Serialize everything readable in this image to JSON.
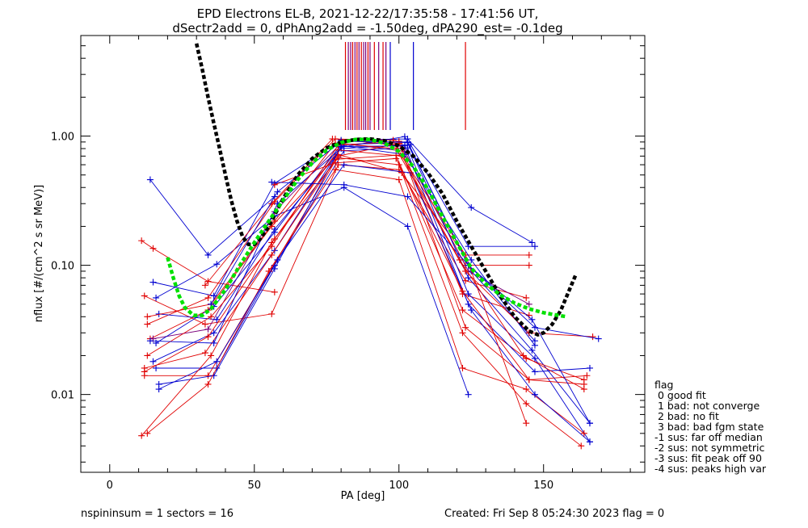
{
  "title_line1": "EPD Electrons EL-B, 2021-12-22/17:35:58 - 17:41:56 UT,",
  "title_line2": "dSectr2add = 0, dPhAng2add = -1.50deg, dPA290_est=  -0.1deg",
  "footer": {
    "left": "nspininsum =  1  sectors = 16",
    "right": "Created: Fri Sep  8 05:24:30 2023   flag = 0"
  },
  "legend": {
    "title": "flag",
    "items": [
      " 0 good fit",
      " 1 bad: not converge",
      " 2 bad: no fit",
      " 3 bad: bad fgm state",
      "-1 sus: far off median",
      "-2 sus: not symmetric",
      "-3 sus: fit peak off 90",
      "-4 sus: peaks high var"
    ]
  },
  "colors": {
    "red": "#e00000",
    "blue": "#0000d0",
    "purple": "#7b007b",
    "green": "#00e000",
    "black": "#000000"
  },
  "chart_data": {
    "type": "line",
    "xlabel": "PA [deg]",
    "ylabel": "nflux [#/(cm^2 s sr MeV)]",
    "xlim": [
      -10,
      185
    ],
    "ylim": [
      0.0025,
      6
    ],
    "yscale": "log",
    "xticks": [
      0,
      50,
      100,
      150
    ],
    "xtick_labels": [
      "0",
      "50",
      "100",
      "150"
    ],
    "yticks": [
      0.01,
      0.1,
      1.0
    ],
    "ytick_labels": [
      "0.01",
      "0.10",
      "1.00"
    ],
    "peak_markers_pa": [
      {
        "pa": 81.5,
        "c": "red"
      },
      {
        "pa": 82.5,
        "c": "purple"
      },
      {
        "pa": 83.3,
        "c": "purple"
      },
      {
        "pa": 84.0,
        "c": "red"
      },
      {
        "pa": 84.8,
        "c": "purple"
      },
      {
        "pa": 85.5,
        "c": "red"
      },
      {
        "pa": 86.2,
        "c": "purple"
      },
      {
        "pa": 87.0,
        "c": "red"
      },
      {
        "pa": 87.8,
        "c": "purple"
      },
      {
        "pa": 88.5,
        "c": "purple"
      },
      {
        "pa": 89.3,
        "c": "red"
      },
      {
        "pa": 90.0,
        "c": "purple"
      },
      {
        "pa": 91.5,
        "c": "red"
      },
      {
        "pa": 93.0,
        "c": "purple"
      },
      {
        "pa": 94.5,
        "c": "red"
      },
      {
        "pa": 95.5,
        "c": "purple"
      },
      {
        "pa": 97.0,
        "c": "blue"
      },
      {
        "pa": 105.0,
        "c": "blue"
      },
      {
        "pa": 123.0,
        "c": "red"
      }
    ],
    "series": [
      {
        "c": "blue",
        "points": [
          [
            14,
            0.46
          ],
          [
            34,
            0.12
          ],
          [
            57,
            0.34
          ]
        ]
      },
      {
        "c": "red",
        "points": [
          [
            11,
            0.155
          ],
          [
            15,
            0.135
          ],
          [
            34,
            0.075
          ],
          [
            57,
            0.062
          ]
        ]
      },
      {
        "c": "red",
        "points": [
          [
            12,
            0.058
          ],
          [
            33,
            0.035
          ],
          [
            56,
            0.042
          ],
          [
            79,
            0.6
          ],
          [
            100,
            0.55
          ],
          [
            123,
            0.12
          ],
          [
            145,
            0.12
          ]
        ]
      },
      {
        "c": "blue",
        "points": [
          [
            15,
            0.074
          ],
          [
            36,
            0.058
          ],
          [
            57,
            0.43
          ],
          [
            80,
            0.93
          ],
          [
            103,
            0.95
          ],
          [
            125,
            0.28
          ],
          [
            146,
            0.15
          ]
        ]
      },
      {
        "c": "blue",
        "points": [
          [
            16,
            0.056
          ],
          [
            37,
            0.102
          ],
          [
            57,
            0.24
          ],
          [
            81,
            0.4
          ],
          [
            103,
            0.2
          ],
          [
            124,
            0.01
          ]
        ]
      },
      {
        "c": "red",
        "points": [
          [
            13,
            0.035
          ],
          [
            34,
            0.056
          ],
          [
            57,
            0.31
          ],
          [
            78,
            0.95
          ],
          [
            101,
            0.84
          ],
          [
            123,
            0.1
          ],
          [
            145,
            0.1
          ]
        ]
      },
      {
        "c": "blue",
        "points": [
          [
            17,
            0.042
          ],
          [
            37,
            0.038
          ],
          [
            57,
            0.19
          ],
          [
            80,
            0.8
          ],
          [
            104,
            0.86
          ],
          [
            124,
            0.14
          ],
          [
            147,
            0.14
          ]
        ]
      },
      {
        "c": "red",
        "points": [
          [
            14,
            0.027
          ],
          [
            34,
            0.045
          ],
          [
            56,
            0.2
          ],
          [
            79,
            0.72
          ],
          [
            101,
            0.52
          ],
          [
            123,
            0.076
          ],
          [
            144,
            0.056
          ]
        ]
      },
      {
        "c": "purple",
        "points": [
          [
            15,
            0.027
          ],
          [
            34,
            0.032
          ],
          [
            57,
            0.26
          ],
          [
            80,
            0.88
          ],
          [
            102,
            0.76
          ],
          [
            124,
            0.09
          ],
          [
            145,
            0.05
          ]
        ]
      },
      {
        "c": "blue",
        "points": [
          [
            16,
            0.025
          ],
          [
            36,
            0.048
          ],
          [
            57,
            0.18
          ],
          [
            80,
            0.86
          ],
          [
            103,
            0.89
          ],
          [
            125,
            0.09
          ],
          [
            147,
            0.026
          ]
        ]
      },
      {
        "c": "red",
        "points": [
          [
            13,
            0.02
          ],
          [
            35,
            0.04
          ],
          [
            56,
            0.14
          ],
          [
            79,
            0.85
          ],
          [
            100,
            0.91
          ],
          [
            122,
            0.06
          ],
          [
            145,
            0.041
          ]
        ]
      },
      {
        "c": "blue",
        "points": [
          [
            15,
            0.018
          ],
          [
            36,
            0.03
          ],
          [
            57,
            0.13
          ],
          [
            80,
            0.82
          ],
          [
            102,
            0.99
          ],
          [
            124,
            0.08
          ],
          [
            146,
            0.022
          ],
          [
            166,
            0.006
          ]
        ]
      },
      {
        "c": "red",
        "points": [
          [
            12,
            0.016
          ],
          [
            33,
            0.021
          ],
          [
            56,
            0.12
          ],
          [
            78,
            0.66
          ],
          [
            99,
            0.71
          ],
          [
            122,
            0.045
          ],
          [
            144,
            0.019
          ],
          [
            164,
            0.013
          ]
        ]
      },
      {
        "c": "blue",
        "points": [
          [
            16,
            0.016
          ],
          [
            37,
            0.016
          ],
          [
            57,
            0.1
          ],
          [
            81,
            0.77
          ],
          [
            103,
            0.81
          ],
          [
            124,
            0.06
          ],
          [
            147,
            0.019
          ],
          [
            166,
            0.0043
          ]
        ]
      },
      {
        "c": "red",
        "points": [
          [
            12,
            0.014
          ],
          [
            34,
            0.014
          ],
          [
            56,
            0.094
          ],
          [
            79,
            0.7
          ],
          [
            100,
            0.88
          ],
          [
            123,
            0.033
          ],
          [
            145,
            0.013
          ],
          [
            165,
            0.014
          ]
        ]
      },
      {
        "c": "blue",
        "points": [
          [
            17,
            0.012
          ],
          [
            36,
            0.014
          ],
          [
            57,
            0.094
          ],
          [
            80,
            0.83
          ],
          [
            102,
            0.84
          ],
          [
            124,
            0.05
          ],
          [
            147,
            0.015
          ],
          [
            166,
            0.016
          ]
        ]
      },
      {
        "c": "red",
        "points": [
          [
            13,
            0.005
          ],
          [
            34,
            0.012
          ],
          [
            55,
            0.09
          ],
          [
            78,
            0.55
          ],
          [
            100,
            0.46
          ],
          [
            122,
            0.016
          ],
          [
            144,
            0.011
          ],
          [
            164,
            0.005
          ]
        ]
      },
      {
        "c": "blue",
        "points": [
          [
            17,
            0.011
          ],
          [
            37,
            0.018
          ],
          [
            58,
            0.11
          ],
          [
            81,
            0.6
          ],
          [
            104,
            0.52
          ],
          [
            125,
            0.045
          ],
          [
            147,
            0.01
          ],
          [
            166,
            0.0043
          ]
        ]
      },
      {
        "c": "red",
        "points": [
          [
            11,
            0.0048
          ],
          [
            35,
            0.02
          ],
          [
            56,
            0.15
          ],
          [
            79,
            0.68
          ],
          [
            100,
            0.6
          ],
          [
            122,
            0.03
          ],
          [
            144,
            0.0085
          ],
          [
            163,
            0.004
          ]
        ]
      },
      {
        "c": "red",
        "points": [
          [
            12,
            0.015
          ],
          [
            34,
            0.028
          ],
          [
            57,
            0.16
          ],
          [
            79,
            0.78
          ],
          [
            101,
            0.7
          ],
          [
            123,
            0.12
          ],
          [
            144,
            0.006
          ]
        ]
      },
      {
        "c": "blue",
        "points": [
          [
            14,
            0.026
          ],
          [
            36,
            0.025
          ],
          [
            58,
            0.3
          ],
          [
            81,
            0.84
          ],
          [
            102,
            0.72
          ],
          [
            125,
            0.11
          ],
          [
            147,
            0.024
          ]
        ]
      },
      {
        "c": "red",
        "points": [
          [
            13,
            0.04
          ],
          [
            35,
            0.05
          ],
          [
            57,
            0.22
          ],
          [
            78,
            0.88
          ],
          [
            99,
            0.8
          ],
          [
            123,
            0.09
          ],
          [
            145,
            0.03
          ],
          [
            167,
            0.028
          ]
        ]
      },
      {
        "c": "red",
        "points": [
          [
            57,
            0.42
          ],
          [
            78,
            0.62
          ],
          [
            99,
            0.67
          ],
          [
            122,
            0.063
          ],
          [
            145,
            0.013
          ],
          [
            164,
            0.012
          ]
        ]
      },
      {
        "c": "blue",
        "points": [
          [
            56,
            0.44
          ],
          [
            81,
            0.42
          ],
          [
            103,
            0.34
          ],
          [
            124,
            0.1
          ],
          [
            147,
            0.033
          ],
          [
            169,
            0.027
          ]
        ]
      },
      {
        "c": "red",
        "points": [
          [
            33,
            0.07
          ],
          [
            56,
            0.3
          ],
          [
            77,
            0.95
          ],
          [
            98,
            0.93
          ],
          [
            121,
            0.11
          ],
          [
            143,
            0.02
          ],
          [
            164,
            0.011
          ]
        ]
      },
      {
        "c": "blue",
        "points": [
          [
            35,
            0.05
          ],
          [
            58,
            0.37
          ],
          [
            80,
            0.91
          ],
          [
            103,
            0.9
          ],
          [
            124,
            0.1
          ],
          [
            146,
            0.038
          ],
          [
            166,
            0.006
          ]
        ]
      }
    ],
    "fit_curves": [
      {
        "c": "black",
        "points": [
          [
            30,
            5.2
          ],
          [
            32,
            3.3
          ],
          [
            34,
            2.0
          ],
          [
            36,
            1.25
          ],
          [
            38,
            0.8
          ],
          [
            40,
            0.5
          ],
          [
            42,
            0.32
          ],
          [
            44,
            0.22
          ],
          [
            46,
            0.165
          ],
          [
            48,
            0.145
          ],
          [
            50,
            0.145
          ],
          [
            52,
            0.16
          ],
          [
            55,
            0.2
          ],
          [
            60,
            0.33
          ],
          [
            65,
            0.5
          ],
          [
            70,
            0.67
          ],
          [
            75,
            0.81
          ],
          [
            80,
            0.9
          ],
          [
            85,
            0.94
          ],
          [
            90,
            0.95
          ],
          [
            95,
            0.92
          ],
          [
            100,
            0.84
          ],
          [
            105,
            0.7
          ],
          [
            110,
            0.52
          ],
          [
            115,
            0.36
          ],
          [
            120,
            0.22
          ],
          [
            125,
            0.14
          ],
          [
            130,
            0.09
          ],
          [
            135,
            0.058
          ],
          [
            140,
            0.04
          ],
          [
            145,
            0.031
          ],
          [
            148,
            0.029
          ],
          [
            150,
            0.03
          ],
          [
            153,
            0.035
          ],
          [
            156,
            0.045
          ],
          [
            159,
            0.065
          ],
          [
            161,
            0.083
          ]
        ]
      },
      {
        "c": "green",
        "points": [
          [
            20,
            0.115
          ],
          [
            22,
            0.08
          ],
          [
            24,
            0.058
          ],
          [
            26,
            0.047
          ],
          [
            29,
            0.041
          ],
          [
            32,
            0.041
          ],
          [
            35,
            0.046
          ],
          [
            40,
            0.065
          ],
          [
            45,
            0.1
          ],
          [
            50,
            0.15
          ],
          [
            55,
            0.22
          ],
          [
            60,
            0.32
          ],
          [
            65,
            0.46
          ],
          [
            70,
            0.62
          ],
          [
            75,
            0.78
          ],
          [
            80,
            0.89
          ],
          [
            85,
            0.94
          ],
          [
            90,
            0.94
          ],
          [
            95,
            0.88
          ],
          [
            100,
            0.76
          ],
          [
            105,
            0.58
          ],
          [
            110,
            0.39
          ],
          [
            115,
            0.24
          ],
          [
            120,
            0.15
          ],
          [
            125,
            0.095
          ],
          [
            130,
            0.072
          ],
          [
            135,
            0.059
          ],
          [
            140,
            0.051
          ],
          [
            145,
            0.046
          ],
          [
            150,
            0.043
          ],
          [
            155,
            0.041
          ],
          [
            158,
            0.04
          ]
        ]
      }
    ]
  }
}
